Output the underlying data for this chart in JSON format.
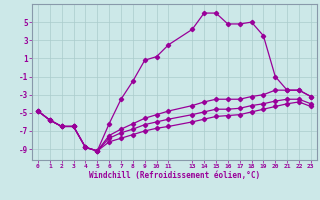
{
  "bg_color": "#cce8e8",
  "line_color": "#990099",
  "grid_color": "#aacccc",
  "spine_color": "#8899aa",
  "xlabel": "Windchill (Refroidissement éolien,°C)",
  "xlim": [
    -0.5,
    23.5
  ],
  "ylim": [
    -10.2,
    7.0
  ],
  "yticks": [
    5,
    3,
    1,
    -1,
    -3,
    -5,
    -7,
    -9
  ],
  "xtick_positions": [
    0,
    1,
    2,
    3,
    4,
    5,
    6,
    7,
    8,
    9,
    10,
    11,
    13,
    14,
    15,
    16,
    17,
    18,
    19,
    20,
    21,
    22,
    23
  ],
  "xtick_labels": [
    "0",
    "1",
    "2",
    "3",
    "4",
    "5",
    "6",
    "7",
    "8",
    "9",
    "10",
    "11",
    "13",
    "14",
    "15",
    "16",
    "17",
    "18",
    "19",
    "20",
    "21",
    "22",
    "23"
  ],
  "line1_x": [
    0,
    1,
    2,
    3,
    4,
    5,
    6,
    7,
    8,
    9,
    10,
    11,
    13,
    14,
    15,
    16,
    17,
    18,
    19,
    20,
    21,
    22,
    23
  ],
  "line1_y": [
    -4.8,
    -5.8,
    -6.5,
    -6.5,
    -8.8,
    -9.2,
    -6.2,
    -3.5,
    -1.5,
    0.8,
    1.2,
    2.5,
    4.2,
    6.0,
    6.0,
    4.8,
    4.8,
    5.0,
    3.5,
    -1.0,
    -2.5,
    -2.5,
    -3.2
  ],
  "line2_x": [
    0,
    1,
    2,
    3,
    4,
    5,
    6,
    7,
    8,
    9,
    10,
    11,
    13,
    14,
    15,
    16,
    17,
    18,
    19,
    20,
    21,
    22,
    23
  ],
  "line2_y": [
    -4.8,
    -5.8,
    -6.5,
    -6.5,
    -8.8,
    -9.2,
    -7.5,
    -6.8,
    -6.2,
    -5.6,
    -5.2,
    -4.8,
    -4.2,
    -3.8,
    -3.5,
    -3.5,
    -3.5,
    -3.2,
    -3.0,
    -2.5,
    -2.5,
    -2.5,
    -3.2
  ],
  "line3_x": [
    0,
    1,
    2,
    3,
    4,
    5,
    6,
    7,
    8,
    9,
    10,
    11,
    13,
    14,
    15,
    16,
    17,
    18,
    19,
    20,
    21,
    22,
    23
  ],
  "line3_y": [
    -4.8,
    -5.8,
    -6.5,
    -6.5,
    -8.8,
    -9.2,
    -7.8,
    -7.2,
    -6.8,
    -6.3,
    -6.0,
    -5.7,
    -5.2,
    -4.9,
    -4.6,
    -4.6,
    -4.5,
    -4.2,
    -4.0,
    -3.7,
    -3.5,
    -3.5,
    -4.0
  ],
  "line4_x": [
    0,
    1,
    2,
    3,
    4,
    5,
    6,
    7,
    8,
    9,
    10,
    11,
    13,
    14,
    15,
    16,
    17,
    18,
    19,
    20,
    21,
    22,
    23
  ],
  "line4_y": [
    -4.8,
    -5.8,
    -6.5,
    -6.5,
    -8.8,
    -9.2,
    -8.2,
    -7.8,
    -7.4,
    -7.0,
    -6.7,
    -6.5,
    -6.0,
    -5.7,
    -5.4,
    -5.3,
    -5.2,
    -4.9,
    -4.6,
    -4.3,
    -4.0,
    -3.8,
    -4.3
  ]
}
